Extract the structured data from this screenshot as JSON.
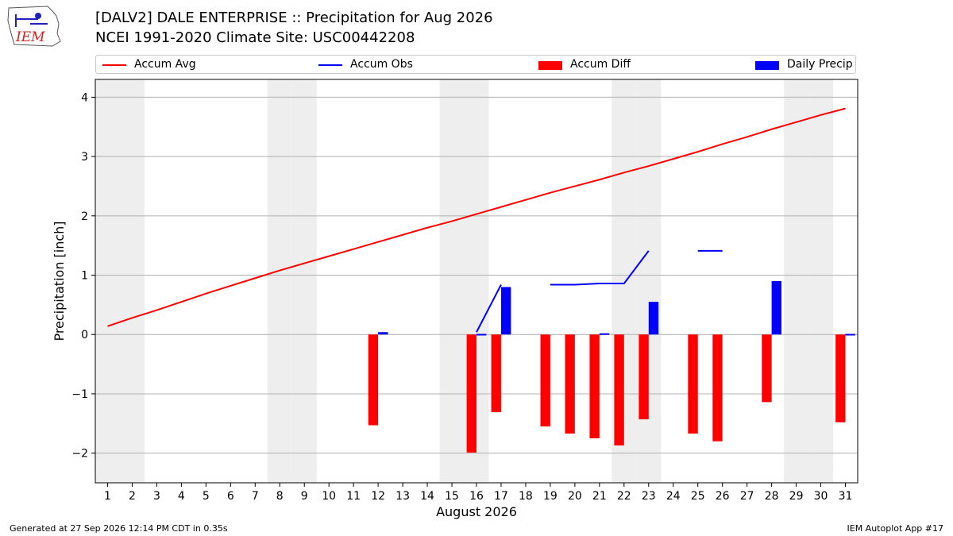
{
  "logo": {
    "text": "IEM"
  },
  "header": {
    "title_line1": "[DALV2] DALE ENTERPRISE :: Precipitation for Aug 2026",
    "title_line2": "NCEI 1991-2020 Climate Site: USC00442208"
  },
  "legend": {
    "accum_avg": "Accum Avg",
    "accum_obs": "Accum Obs",
    "accum_diff": "Accum Diff",
    "daily_precip": "Daily Precip"
  },
  "footer": {
    "left": "Generated at 27 Sep 2026 12:14 PM CDT in 0.35s",
    "right": "IEM Autoplot App #17"
  },
  "chart_data": {
    "type": "bar",
    "xlabel": "August 2026",
    "ylabel": "Precipitation [inch]",
    "xlim": [
      0.5,
      31.5
    ],
    "ylim": [
      -2.5,
      4.3
    ],
    "yticks": [
      -2,
      -1,
      0,
      1,
      2,
      3,
      4
    ],
    "ytick_labels": [
      "−2",
      "−1",
      "0",
      "1",
      "2",
      "3",
      "4"
    ],
    "days": [
      1,
      2,
      3,
      4,
      5,
      6,
      7,
      8,
      9,
      10,
      11,
      12,
      13,
      14,
      15,
      16,
      17,
      18,
      19,
      20,
      21,
      22,
      23,
      24,
      25,
      26,
      27,
      28,
      29,
      30,
      31
    ],
    "weekend_days": [
      1,
      2,
      8,
      9,
      15,
      16,
      22,
      23,
      29,
      30
    ],
    "grid": true,
    "legend_position": "top",
    "colors": {
      "avg": "#ff0000",
      "obs": "#0000ff",
      "diff": "#ff0000",
      "daily": "#0000ff",
      "weekend": "#eeeeee",
      "grid": "#b0b0b0"
    },
    "series": [
      {
        "name": "Accum Avg",
        "kind": "line",
        "values": [
          0.14,
          0.28,
          0.41,
          0.55,
          0.69,
          0.82,
          0.95,
          1.08,
          1.2,
          1.32,
          1.44,
          1.56,
          1.68,
          1.8,
          1.91,
          2.03,
          2.15,
          2.27,
          2.39,
          2.5,
          2.61,
          2.73,
          2.84,
          2.96,
          3.08,
          3.21,
          3.33,
          3.46,
          3.58,
          3.7,
          3.81
        ]
      },
      {
        "name": "Accum Obs",
        "kind": "line",
        "values": [
          null,
          null,
          null,
          null,
          null,
          null,
          null,
          null,
          null,
          null,
          null,
          null,
          null,
          null,
          null,
          0.04,
          0.84,
          null,
          0.84,
          0.84,
          0.86,
          0.86,
          1.41,
          null,
          1.41,
          1.41,
          null,
          null,
          null,
          null,
          null
        ]
      },
      {
        "name": "Accum Diff",
        "kind": "bar",
        "values": [
          null,
          null,
          null,
          null,
          null,
          null,
          null,
          null,
          null,
          null,
          null,
          -1.53,
          null,
          null,
          null,
          -1.99,
          -1.31,
          null,
          -1.55,
          -1.67,
          -1.75,
          -1.87,
          -1.43,
          null,
          -1.67,
          -1.8,
          null,
          -1.14,
          null,
          null,
          -1.48
        ]
      },
      {
        "name": "Daily Precip",
        "kind": "bar",
        "values": [
          null,
          null,
          null,
          null,
          null,
          null,
          null,
          null,
          null,
          null,
          null,
          0.04,
          null,
          null,
          null,
          0.01,
          0.8,
          null,
          null,
          null,
          0.02,
          null,
          0.55,
          null,
          null,
          null,
          null,
          0.9,
          null,
          null,
          0.01
        ]
      }
    ]
  }
}
